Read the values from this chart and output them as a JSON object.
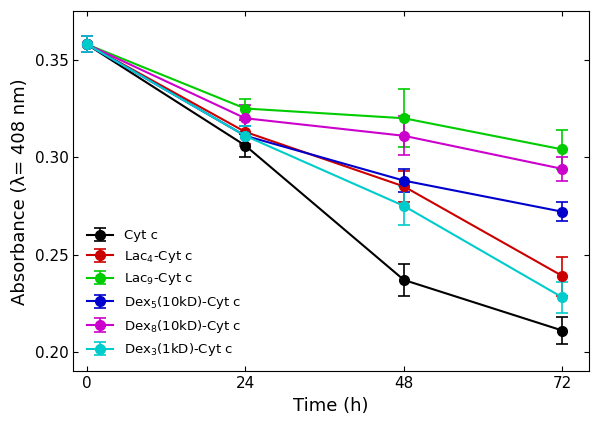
{
  "time": [
    0,
    24,
    48,
    72
  ],
  "series": [
    {
      "label": "Cyt c",
      "color": "#000000",
      "values": [
        0.358,
        0.306,
        0.237,
        0.211
      ],
      "errors": [
        0.004,
        0.006,
        0.008,
        0.007
      ]
    },
    {
      "label": "Lac$_4$-Cyt c",
      "color": "#cc0000",
      "values": [
        0.358,
        0.313,
        0.285,
        0.239
      ],
      "errors": [
        0.004,
        0.006,
        0.008,
        0.01
      ]
    },
    {
      "label": "Lac$_9$-Cyt c",
      "color": "#00cc00",
      "values": [
        0.358,
        0.325,
        0.32,
        0.304
      ],
      "errors": [
        0.004,
        0.005,
        0.015,
        0.01
      ]
    },
    {
      "label": "Dex$_5$(10kD)-Cyt c",
      "color": "#0000cc",
      "values": [
        0.358,
        0.311,
        0.288,
        0.272
      ],
      "errors": [
        0.004,
        0.005,
        0.006,
        0.005
      ]
    },
    {
      "label": "Dex$_8$(10kD)-Cyt c",
      "color": "#cc00cc",
      "values": [
        0.358,
        0.32,
        0.311,
        0.294
      ],
      "errors": [
        0.004,
        0.007,
        0.01,
        0.006
      ]
    },
    {
      "label": "Dex$_3$(1kD)-Cyt c",
      "color": "#00cccc",
      "values": [
        0.358,
        0.311,
        0.275,
        0.228
      ],
      "errors": [
        0.004,
        0.005,
        0.01,
        0.008
      ]
    }
  ],
  "xlabel": "Time (h)",
  "ylabel": "Absorbance (λ= 408 nm)",
  "xlim": [
    -2,
    76
  ],
  "ylim": [
    0.19,
    0.375
  ],
  "xticks": [
    0,
    24,
    48,
    72
  ],
  "yticks": [
    0.2,
    0.25,
    0.3,
    0.35
  ],
  "marker": "o",
  "markersize": 7,
  "linewidth": 1.5,
  "capsize": 4,
  "legend_loc": "lower left",
  "background_color": "#ffffff"
}
